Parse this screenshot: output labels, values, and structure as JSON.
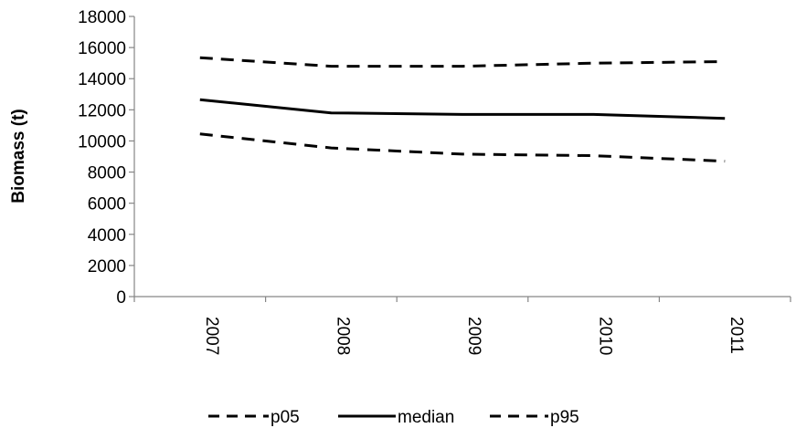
{
  "chart_data": {
    "type": "line",
    "x": [
      "2007",
      "2008",
      "2009",
      "2010",
      "2011"
    ],
    "ylabel": "Biomass (t)",
    "xlabel": "",
    "ylim": [
      0,
      18000
    ],
    "yticks": [
      0,
      2000,
      4000,
      6000,
      8000,
      10000,
      12000,
      14000,
      16000,
      18000
    ],
    "grid": false,
    "legend_position": "bottom",
    "series": [
      {
        "name": "p05",
        "values": [
          10450,
          9550,
          9150,
          9050,
          8700
        ],
        "style": "dashed",
        "color": "#000000"
      },
      {
        "name": "median",
        "values": [
          12650,
          11800,
          11700,
          11700,
          11450
        ],
        "style": "solid",
        "color": "#000000"
      },
      {
        "name": "p95",
        "values": [
          15350,
          14800,
          14800,
          15000,
          15100
        ],
        "style": "dashed",
        "color": "#000000"
      }
    ]
  }
}
